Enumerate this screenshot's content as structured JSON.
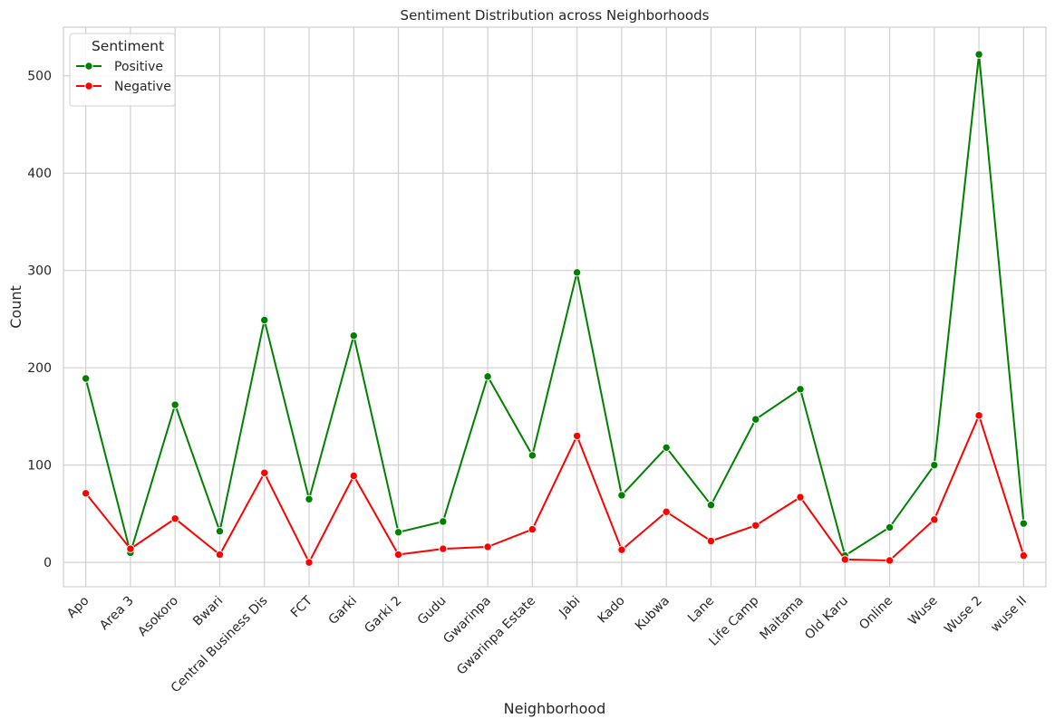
{
  "chart_data": {
    "type": "line",
    "title": "Sentiment Distribution across Neighborhoods",
    "xlabel": "Neighborhood",
    "ylabel": "Count",
    "ylim": [
      -25,
      550
    ],
    "yticks": [
      0,
      100,
      200,
      300,
      400,
      500
    ],
    "grid": true,
    "legend": {
      "title": "Sentiment",
      "placement": "top-left"
    },
    "categories": [
      "Apo",
      "Area 3",
      "Asokoro",
      "Bwari",
      "Central Business Dis",
      "FCT",
      "Garki",
      "Garki 2",
      "Gudu",
      "Gwarinpa",
      "Gwarinpa Estate",
      "Jabi",
      "Kado",
      "Kubwa",
      "Lane",
      "Life Camp",
      "Maitama",
      "Old Karu",
      "Online",
      "Wuse",
      "Wuse 2",
      "wuse II"
    ],
    "series": [
      {
        "name": "Positive",
        "color": "#008000",
        "values": [
          189,
          10,
          162,
          32,
          249,
          65,
          233,
          31,
          42,
          191,
          110,
          298,
          69,
          118,
          59,
          147,
          178,
          7,
          36,
          100,
          522,
          40
        ]
      },
      {
        "name": "Negative",
        "color": "#ff0000",
        "values": [
          71,
          14,
          45,
          8,
          92,
          0,
          89,
          8,
          14,
          16,
          34,
          130,
          13,
          52,
          22,
          38,
          67,
          3,
          2,
          44,
          151,
          7
        ]
      }
    ]
  }
}
